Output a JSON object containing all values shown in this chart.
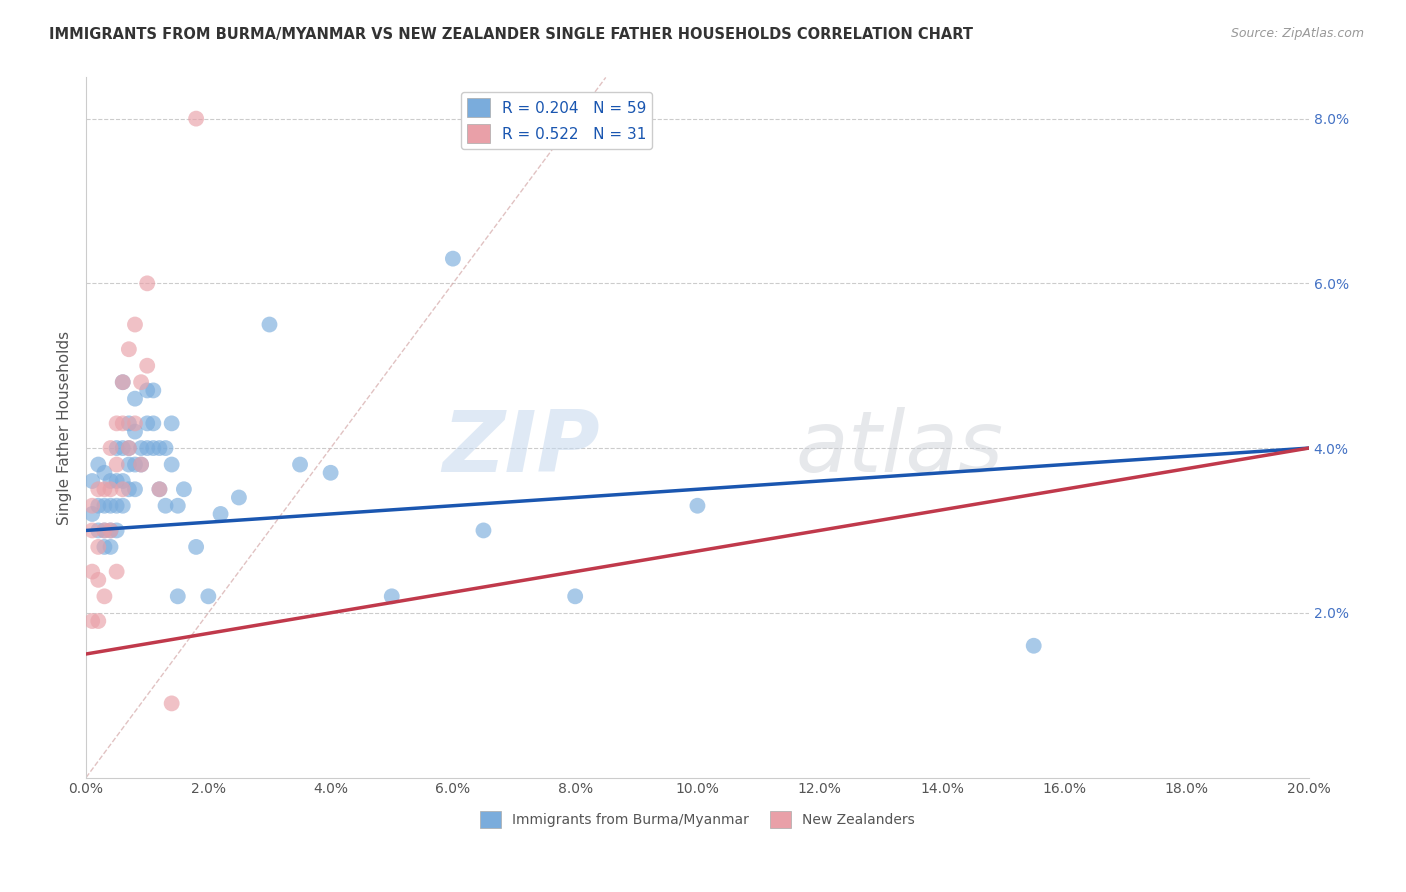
{
  "title": "IMMIGRANTS FROM BURMA/MYANMAR VS NEW ZEALANDER SINGLE FATHER HOUSEHOLDS CORRELATION CHART",
  "source": "Source: ZipAtlas.com",
  "ylabel": "Single Father Households",
  "xlim": [
    0.0,
    0.2
  ],
  "ylim": [
    0.0,
    0.085
  ],
  "xticks": [
    0.0,
    0.02,
    0.04,
    0.06,
    0.08,
    0.1,
    0.12,
    0.14,
    0.16,
    0.18,
    0.2
  ],
  "yticks_right": [
    0.02,
    0.04,
    0.06,
    0.08
  ],
  "ytick_labels_right": [
    "2.0%",
    "4.0%",
    "6.0%",
    "8.0%"
  ],
  "xtick_labels": [
    "0.0%",
    "2.0%",
    "4.0%",
    "6.0%",
    "8.0%",
    "10.0%",
    "12.0%",
    "14.0%",
    "16.0%",
    "18.0%",
    "20.0%"
  ],
  "legend_entry1": "R = 0.204   N = 59",
  "legend_entry2": "R = 0.522   N = 31",
  "color_blue": "#7aacdc",
  "color_pink": "#e9a0a8",
  "color_line_blue": "#1a56b0",
  "color_line_pink": "#c0394b",
  "watermark_zip": "ZIP",
  "watermark_atlas": "atlas",
  "blue_line_start_y": 0.03,
  "blue_line_end_y": 0.04,
  "pink_line_start_y": 0.015,
  "pink_line_end_y": 0.04,
  "blue_scatter_x": [
    0.001,
    0.001,
    0.002,
    0.002,
    0.002,
    0.003,
    0.003,
    0.003,
    0.003,
    0.004,
    0.004,
    0.004,
    0.005,
    0.005,
    0.005,
    0.005,
    0.006,
    0.006,
    0.006,
    0.007,
    0.007,
    0.007,
    0.007,
    0.008,
    0.008,
    0.008,
    0.008,
    0.009,
    0.009,
    0.01,
    0.01,
    0.01,
    0.011,
    0.011,
    0.011,
    0.012,
    0.012,
    0.013,
    0.013,
    0.014,
    0.014,
    0.015,
    0.015,
    0.016,
    0.018,
    0.02,
    0.022,
    0.025,
    0.03,
    0.035,
    0.04,
    0.05,
    0.06,
    0.065,
    0.08,
    0.1,
    0.155,
    0.006,
    0.004
  ],
  "blue_scatter_y": [
    0.032,
    0.036,
    0.03,
    0.033,
    0.038,
    0.028,
    0.03,
    0.033,
    0.037,
    0.03,
    0.033,
    0.036,
    0.03,
    0.033,
    0.036,
    0.04,
    0.033,
    0.036,
    0.04,
    0.035,
    0.038,
    0.04,
    0.043,
    0.035,
    0.038,
    0.042,
    0.046,
    0.038,
    0.04,
    0.04,
    0.043,
    0.047,
    0.04,
    0.043,
    0.047,
    0.04,
    0.035,
    0.033,
    0.04,
    0.038,
    0.043,
    0.033,
    0.022,
    0.035,
    0.028,
    0.022,
    0.032,
    0.034,
    0.055,
    0.038,
    0.037,
    0.022,
    0.063,
    0.03,
    0.022,
    0.033,
    0.016,
    0.048,
    0.028
  ],
  "pink_scatter_x": [
    0.001,
    0.001,
    0.001,
    0.001,
    0.002,
    0.002,
    0.002,
    0.002,
    0.003,
    0.003,
    0.003,
    0.004,
    0.004,
    0.004,
    0.005,
    0.005,
    0.005,
    0.006,
    0.006,
    0.006,
    0.007,
    0.007,
    0.008,
    0.008,
    0.009,
    0.009,
    0.01,
    0.01,
    0.012,
    0.014,
    0.018
  ],
  "pink_scatter_y": [
    0.033,
    0.03,
    0.025,
    0.019,
    0.035,
    0.028,
    0.024,
    0.019,
    0.035,
    0.03,
    0.022,
    0.04,
    0.035,
    0.03,
    0.043,
    0.038,
    0.025,
    0.048,
    0.043,
    0.035,
    0.052,
    0.04,
    0.055,
    0.043,
    0.048,
    0.038,
    0.06,
    0.05,
    0.035,
    0.009,
    0.08
  ]
}
